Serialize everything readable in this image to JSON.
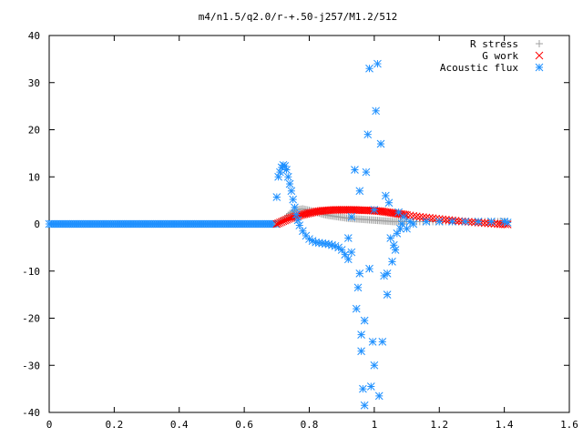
{
  "chart_data": {
    "type": "scatter",
    "title": "m4/n1.5/q2.0/r-+.50-j257/M1.2/512",
    "xlabel": "",
    "ylabel": "",
    "xlim": [
      0,
      1.6
    ],
    "ylim": [
      -40,
      40
    ],
    "x_ticks": [
      "0",
      "0.2",
      "0.4",
      "0.6",
      "0.8",
      "1",
      "1.2",
      "1.4",
      "1.6"
    ],
    "y_ticks": [
      "40",
      "30",
      "20",
      "10",
      "0",
      "-10",
      "-20",
      "-30",
      "-40"
    ],
    "legend_position": "top-right",
    "grid": false,
    "series": [
      {
        "name": "R stress",
        "marker": "+",
        "color": "#a0a0a0",
        "points": [
          [
            0.7,
            0.0
          ],
          [
            0.72,
            0.8
          ],
          [
            0.74,
            2.2
          ],
          [
            0.76,
            3.0
          ],
          [
            0.78,
            3.2
          ],
          [
            0.8,
            2.9
          ],
          [
            0.82,
            2.5
          ],
          [
            0.84,
            2.1
          ],
          [
            0.86,
            1.8
          ],
          [
            0.88,
            1.6
          ],
          [
            0.9,
            1.4
          ],
          [
            0.92,
            1.2
          ],
          [
            0.94,
            1.1
          ],
          [
            0.96,
            1.0
          ],
          [
            0.98,
            0.9
          ],
          [
            1.0,
            0.8
          ],
          [
            1.02,
            0.7
          ],
          [
            1.04,
            0.6
          ],
          [
            1.06,
            0.5
          ],
          [
            1.08,
            0.5
          ],
          [
            1.1,
            0.5
          ],
          [
            1.14,
            0.5
          ],
          [
            1.18,
            0.5
          ],
          [
            1.22,
            0.5
          ],
          [
            1.26,
            0.5
          ],
          [
            1.3,
            0.5
          ],
          [
            1.34,
            0.5
          ],
          [
            1.38,
            0.5
          ],
          [
            1.41,
            0.5
          ]
        ]
      },
      {
        "name": "G work",
        "marker": "x",
        "color": "#ff0000",
        "points": [
          [
            0.7,
            0.0
          ],
          [
            0.72,
            0.6
          ],
          [
            0.74,
            1.2
          ],
          [
            0.76,
            1.6
          ],
          [
            0.78,
            2.0
          ],
          [
            0.8,
            2.3
          ],
          [
            0.82,
            2.6
          ],
          [
            0.84,
            2.8
          ],
          [
            0.86,
            2.9
          ],
          [
            0.88,
            3.0
          ],
          [
            0.9,
            3.0
          ],
          [
            0.92,
            3.0
          ],
          [
            0.94,
            3.0
          ],
          [
            0.96,
            2.9
          ],
          [
            0.98,
            2.9
          ],
          [
            1.0,
            2.8
          ],
          [
            1.02,
            2.7
          ],
          [
            1.04,
            2.5
          ],
          [
            1.06,
            2.3
          ],
          [
            1.08,
            2.1
          ],
          [
            1.1,
            1.9
          ],
          [
            1.14,
            1.5
          ],
          [
            1.18,
            1.2
          ],
          [
            1.22,
            0.9
          ],
          [
            1.26,
            0.6
          ],
          [
            1.3,
            0.4
          ],
          [
            1.34,
            0.2
          ],
          [
            1.38,
            0.0
          ],
          [
            1.41,
            -0.1
          ]
        ]
      },
      {
        "name": "Acoustic flux",
        "marker": "*",
        "color": "#1e90ff",
        "points": [
          [
            0.7,
            5.7
          ],
          [
            0.705,
            10.0
          ],
          [
            0.71,
            11.0
          ],
          [
            0.715,
            12.0
          ],
          [
            0.72,
            12.5
          ],
          [
            0.725,
            12.3
          ],
          [
            0.73,
            11.5
          ],
          [
            0.735,
            10.0
          ],
          [
            0.74,
            8.5
          ],
          [
            0.745,
            7.0
          ],
          [
            0.75,
            5.2
          ],
          [
            0.755,
            3.5
          ],
          [
            0.76,
            2.0
          ],
          [
            0.765,
            0.8
          ],
          [
            0.77,
            -0.3
          ],
          [
            0.78,
            -1.5
          ],
          [
            0.79,
            -2.5
          ],
          [
            0.8,
            -3.2
          ],
          [
            0.81,
            -3.6
          ],
          [
            0.82,
            -3.9
          ],
          [
            0.83,
            -4.0
          ],
          [
            0.84,
            -4.1
          ],
          [
            0.85,
            -4.2
          ],
          [
            0.86,
            -4.3
          ],
          [
            0.87,
            -4.5
          ],
          [
            0.88,
            -4.7
          ],
          [
            0.89,
            -5.0
          ],
          [
            0.9,
            -5.5
          ],
          [
            0.91,
            -6.5
          ],
          [
            0.92,
            -7.5
          ],
          [
            0.93,
            1.5
          ],
          [
            0.94,
            11.5
          ],
          [
            0.945,
            -18.0
          ],
          [
            0.95,
            -13.5
          ],
          [
            0.955,
            7.0
          ],
          [
            0.96,
            -23.5
          ],
          [
            0.965,
            -35.0
          ],
          [
            0.97,
            -20.5
          ],
          [
            0.975,
            11.0
          ],
          [
            0.98,
            19.0
          ],
          [
            0.985,
            33.0
          ],
          [
            0.99,
            -34.5
          ],
          [
            0.995,
            -25.0
          ],
          [
            1.0,
            3.0
          ],
          [
            1.005,
            24.0
          ],
          [
            1.01,
            34.0
          ],
          [
            1.015,
            -36.5
          ],
          [
            1.02,
            17.0
          ],
          [
            1.025,
            -25.0
          ],
          [
            1.03,
            -11.0
          ],
          [
            1.035,
            6.0
          ],
          [
            1.04,
            -15.0
          ],
          [
            1.045,
            4.5
          ],
          [
            1.05,
            -3.0
          ],
          [
            1.055,
            -8.0
          ],
          [
            1.06,
            -4.5
          ],
          [
            1.065,
            -5.5
          ],
          [
            1.07,
            -2.0
          ],
          [
            1.075,
            2.5
          ],
          [
            1.08,
            -1.0
          ],
          [
            1.085,
            0.0
          ],
          [
            1.09,
            1.5
          ],
          [
            1.1,
            -1.0
          ],
          [
            1.11,
            0.5
          ],
          [
            1.12,
            0.0
          ],
          [
            1.16,
            0.5
          ],
          [
            1.2,
            0.5
          ],
          [
            1.24,
            0.5
          ],
          [
            1.28,
            0.5
          ],
          [
            1.32,
            0.5
          ],
          [
            1.36,
            0.5
          ],
          [
            1.4,
            0.5
          ],
          [
            1.41,
            0.3
          ],
          [
            0.97,
            -38.5
          ],
          [
            0.96,
            -27.0
          ],
          [
            1.0,
            -30.0
          ],
          [
            0.985,
            -9.5
          ],
          [
            0.955,
            -10.5
          ],
          [
            1.04,
            -10.5
          ],
          [
            0.92,
            -3.0
          ],
          [
            0.93,
            -6.0
          ]
        ]
      }
    ]
  }
}
